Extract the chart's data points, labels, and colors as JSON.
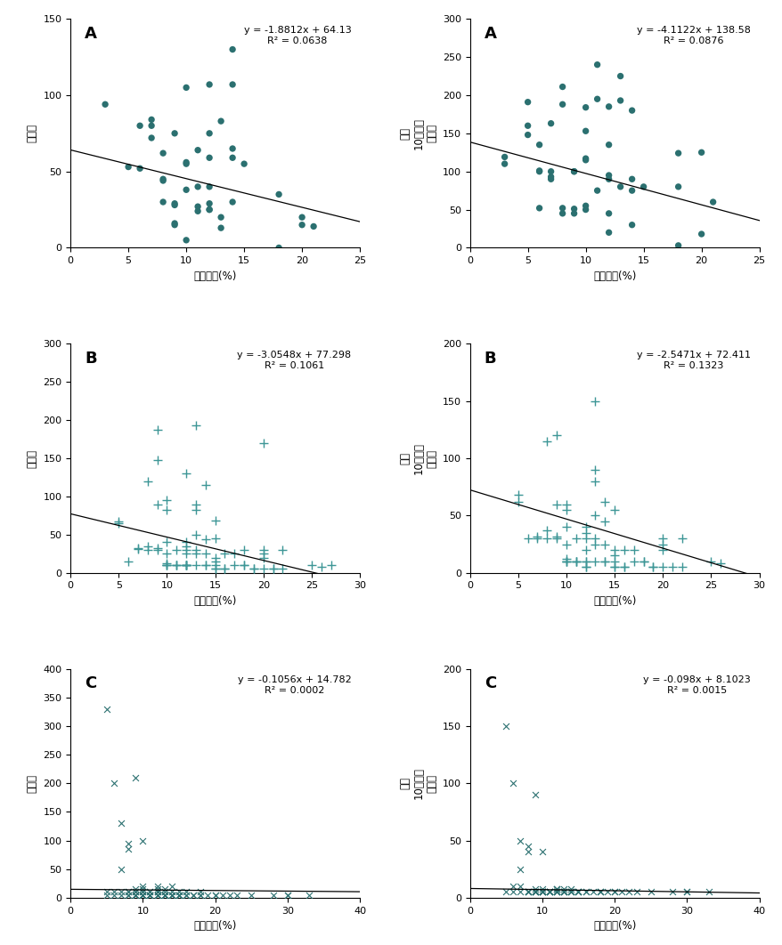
{
  "panel_A_left": {
    "label": "A",
    "xlabel": "쳐저습도(%)",
    "ylabel": "발생수",
    "ylabel_lines": [
      "발생수"
    ],
    "xlim": [
      0,
      25
    ],
    "ylim": [
      0,
      150
    ],
    "xticks": [
      0,
      5,
      10,
      15,
      20,
      25
    ],
    "yticks": [
      0,
      50,
      100,
      150
    ],
    "eq": "y = -1.8812x + 64.13",
    "r2": "R² = 0.0638",
    "slope": -1.8812,
    "intercept": 64.13,
    "color": "#2B7070",
    "marker": "o",
    "x": [
      3,
      5,
      6,
      6,
      7,
      7,
      7,
      8,
      8,
      8,
      8,
      9,
      9,
      9,
      9,
      9,
      10,
      10,
      10,
      10,
      10,
      11,
      11,
      11,
      11,
      12,
      12,
      12,
      12,
      12,
      12,
      12,
      13,
      13,
      13,
      14,
      14,
      14,
      14,
      14,
      15,
      18,
      18,
      20,
      20,
      21
    ],
    "y": [
      94,
      53,
      52,
      80,
      72,
      80,
      84,
      30,
      44,
      45,
      62,
      15,
      16,
      28,
      29,
      75,
      56,
      105,
      55,
      5,
      38,
      24,
      27,
      40,
      64,
      25,
      29,
      25,
      59,
      75,
      40,
      107,
      20,
      13,
      83,
      30,
      65,
      59,
      107,
      130,
      55,
      35,
      0,
      20,
      15,
      14
    ]
  },
  "panel_A_right": {
    "label": "A",
    "xlabel": "쳐저습도(%)",
    "ylabel": "인구 10만명당 발생률",
    "ylabel_lines": [
      "인구",
      "10만명당",
      "발생률"
    ],
    "xlim": [
      0,
      25
    ],
    "ylim": [
      0,
      300
    ],
    "xticks": [
      0,
      5,
      10,
      15,
      20,
      25
    ],
    "yticks": [
      0,
      50,
      100,
      150,
      200,
      250,
      300
    ],
    "eq": "y = -4.1122x + 138.58",
    "r2": "R² = 0.0876",
    "slope": -4.1122,
    "intercept": 138.58,
    "color": "#2B7070",
    "marker": "o",
    "x": [
      3,
      3,
      5,
      5,
      5,
      6,
      6,
      6,
      6,
      7,
      7,
      7,
      7,
      8,
      8,
      8,
      8,
      9,
      9,
      9,
      9,
      10,
      10,
      10,
      10,
      10,
      10,
      11,
      11,
      11,
      12,
      12,
      12,
      12,
      12,
      12,
      13,
      13,
      13,
      14,
      14,
      14,
      14,
      15,
      18,
      18,
      18,
      20,
      20,
      21
    ],
    "y": [
      110,
      119,
      148,
      160,
      191,
      52,
      100,
      101,
      135,
      90,
      93,
      100,
      163,
      45,
      52,
      188,
      211,
      45,
      51,
      100,
      100,
      50,
      55,
      117,
      115,
      153,
      184,
      75,
      195,
      240,
      20,
      45,
      95,
      135,
      90,
      185,
      80,
      193,
      225,
      30,
      75,
      180,
      90,
      80,
      3,
      80,
      124,
      18,
      125,
      60
    ]
  },
  "panel_B_left": {
    "label": "B",
    "xlabel": "쳐저습도(%)",
    "ylabel": "발생수",
    "ylabel_lines": [
      "발생수"
    ],
    "xlim": [
      0,
      30
    ],
    "ylim": [
      0,
      300
    ],
    "xticks": [
      0,
      5,
      10,
      15,
      20,
      25,
      30
    ],
    "yticks": [
      0,
      50,
      100,
      150,
      200,
      250,
      300
    ],
    "eq": "y = -3.0548x + 77.298",
    "r2": "R² = 0.1061",
    "slope": -3.0548,
    "intercept": 77.298,
    "color": "#3D9696",
    "marker": "+",
    "x": [
      5,
      5,
      6,
      7,
      7,
      8,
      8,
      8,
      9,
      9,
      9,
      9,
      9,
      10,
      10,
      10,
      10,
      10,
      10,
      10,
      10,
      11,
      11,
      11,
      11,
      12,
      12,
      12,
      12,
      12,
      12,
      12,
      12,
      12,
      12,
      13,
      13,
      13,
      13,
      13,
      13,
      13,
      14,
      14,
      14,
      14,
      14,
      15,
      15,
      15,
      15,
      15,
      15,
      15,
      16,
      16,
      16,
      17,
      17,
      18,
      18,
      18,
      19,
      19,
      20,
      20,
      20,
      20,
      20,
      21,
      21,
      22,
      22,
      25,
      26,
      27
    ],
    "y": [
      65,
      67,
      15,
      31,
      32,
      30,
      35,
      120,
      30,
      32,
      90,
      148,
      187,
      10,
      10,
      10,
      12,
      25,
      40,
      82,
      95,
      10,
      10,
      10,
      30,
      10,
      10,
      10,
      10,
      10,
      25,
      30,
      35,
      40,
      130,
      10,
      25,
      30,
      50,
      82,
      90,
      193,
      10,
      10,
      25,
      44,
      115,
      5,
      5,
      10,
      15,
      20,
      45,
      68,
      5,
      5,
      25,
      10,
      25,
      10,
      10,
      30,
      5,
      5,
      5,
      20,
      25,
      30,
      170,
      5,
      5,
      5,
      30,
      10,
      8,
      10
    ]
  },
  "panel_B_right": {
    "label": "B",
    "xlabel": "쳐저습도(%)",
    "ylabel": "인구 10만명당 발생률",
    "ylabel_lines": [
      "인구",
      "10만명당",
      "발생률"
    ],
    "xlim": [
      0,
      30
    ],
    "ylim": [
      0,
      200
    ],
    "xticks": [
      0,
      5,
      10,
      15,
      20,
      25,
      30
    ],
    "yticks": [
      0,
      50,
      100,
      150,
      200
    ],
    "eq": "y = -2.5471x + 72.411",
    "r2": "R² = 0.1323",
    "slope": -2.5471,
    "intercept": 72.411,
    "color": "#3D9696",
    "marker": "+",
    "x": [
      5,
      5,
      6,
      7,
      7,
      8,
      8,
      8,
      9,
      9,
      9,
      9,
      10,
      10,
      10,
      10,
      10,
      10,
      10,
      10,
      11,
      11,
      11,
      11,
      12,
      12,
      12,
      12,
      12,
      12,
      12,
      12,
      13,
      13,
      13,
      13,
      13,
      13,
      13,
      14,
      14,
      14,
      14,
      14,
      15,
      15,
      15,
      15,
      15,
      15,
      16,
      16,
      16,
      17,
      17,
      18,
      18,
      19,
      19,
      20,
      20,
      20,
      20,
      21,
      22,
      22,
      25,
      26
    ],
    "y": [
      62,
      68,
      30,
      30,
      32,
      30,
      37,
      115,
      30,
      32,
      60,
      120,
      10,
      10,
      10,
      12,
      25,
      40,
      55,
      60,
      10,
      10,
      10,
      30,
      5,
      5,
      10,
      10,
      20,
      30,
      35,
      40,
      10,
      25,
      30,
      50,
      80,
      90,
      150,
      10,
      10,
      25,
      45,
      62,
      5,
      5,
      10,
      15,
      20,
      55,
      5,
      5,
      20,
      10,
      20,
      10,
      10,
      5,
      5,
      5,
      20,
      25,
      30,
      5,
      5,
      30,
      10,
      8
    ]
  },
  "panel_C_left": {
    "label": "C",
    "xlabel": "쳐저습도(%)",
    "ylabel": "발생수",
    "ylabel_lines": [
      "발생수"
    ],
    "xlim": [
      0,
      40
    ],
    "ylim": [
      0,
      400
    ],
    "xticks": [
      0,
      10,
      20,
      30,
      40
    ],
    "yticks": [
      0,
      50,
      100,
      150,
      200,
      250,
      300,
      350,
      400
    ],
    "eq": "y = -0.1056x + 14.782",
    "r2": "R² = 0.0002",
    "slope": -0.1056,
    "intercept": 14.782,
    "color": "#2B7070",
    "marker": "x",
    "x": [
      5,
      5,
      5,
      6,
      6,
      6,
      7,
      7,
      7,
      7,
      8,
      8,
      8,
      8,
      8,
      8,
      9,
      9,
      9,
      9,
      9,
      9,
      9,
      9,
      10,
      10,
      10,
      10,
      10,
      10,
      10,
      10,
      10,
      10,
      11,
      11,
      11,
      11,
      11,
      11,
      11,
      12,
      12,
      12,
      12,
      12,
      12,
      12,
      12,
      12,
      13,
      13,
      13,
      13,
      13,
      13,
      13,
      14,
      14,
      14,
      14,
      14,
      14,
      15,
      15,
      15,
      15,
      15,
      16,
      16,
      16,
      17,
      17,
      18,
      18,
      18,
      19,
      20,
      20,
      21,
      22,
      23,
      25,
      28,
      30,
      30,
      33
    ],
    "y": [
      330,
      5,
      10,
      5,
      10,
      200,
      5,
      10,
      50,
      130,
      5,
      5,
      10,
      10,
      85,
      95,
      5,
      5,
      5,
      5,
      10,
      10,
      15,
      210,
      5,
      5,
      5,
      5,
      5,
      10,
      10,
      15,
      20,
      100,
      5,
      5,
      5,
      5,
      5,
      10,
      10,
      5,
      5,
      5,
      5,
      10,
      10,
      10,
      15,
      20,
      5,
      5,
      5,
      5,
      5,
      10,
      15,
      5,
      5,
      5,
      5,
      10,
      20,
      5,
      5,
      5,
      5,
      10,
      5,
      5,
      10,
      5,
      5,
      5,
      5,
      10,
      5,
      5,
      5,
      5,
      5,
      5,
      5,
      5,
      5,
      5,
      5
    ]
  },
  "panel_C_right": {
    "label": "C",
    "xlabel": "쳐저습도(%)",
    "ylabel": "인구 10만명당 발생률",
    "ylabel_lines": [
      "인구",
      "10만명당",
      "발생률"
    ],
    "xlim": [
      0,
      40
    ],
    "ylim": [
      0,
      200
    ],
    "xticks": [
      0,
      10,
      20,
      30,
      40
    ],
    "yticks": [
      0,
      50,
      100,
      150,
      200
    ],
    "eq": "y = -0.098x + 8.1023",
    "r2": "R² = 0.0015",
    "slope": -0.098,
    "intercept": 8.1023,
    "color": "#2B7070",
    "marker": "x",
    "x": [
      5,
      5,
      6,
      6,
      6,
      7,
      7,
      7,
      7,
      8,
      8,
      8,
      8,
      8,
      8,
      9,
      9,
      9,
      9,
      9,
      9,
      9,
      9,
      10,
      10,
      10,
      10,
      10,
      10,
      10,
      10,
      10,
      11,
      11,
      11,
      11,
      11,
      11,
      12,
      12,
      12,
      12,
      12,
      12,
      12,
      12,
      13,
      13,
      13,
      13,
      13,
      13,
      14,
      14,
      14,
      14,
      14,
      15,
      15,
      15,
      15,
      16,
      16,
      17,
      18,
      18,
      18,
      19,
      20,
      20,
      21,
      22,
      23,
      25,
      28,
      30,
      30,
      33
    ],
    "y": [
      150,
      5,
      5,
      10,
      100,
      5,
      10,
      25,
      50,
      5,
      5,
      5,
      5,
      40,
      45,
      5,
      5,
      5,
      5,
      5,
      5,
      8,
      90,
      5,
      5,
      5,
      5,
      5,
      5,
      5,
      8,
      40,
      5,
      5,
      5,
      5,
      5,
      5,
      5,
      5,
      5,
      5,
      5,
      8,
      8,
      8,
      5,
      5,
      5,
      5,
      5,
      8,
      5,
      5,
      5,
      5,
      8,
      5,
      5,
      5,
      5,
      5,
      5,
      5,
      5,
      5,
      5,
      5,
      5,
      5,
      5,
      5,
      5,
      5,
      5,
      5,
      5,
      5
    ]
  }
}
